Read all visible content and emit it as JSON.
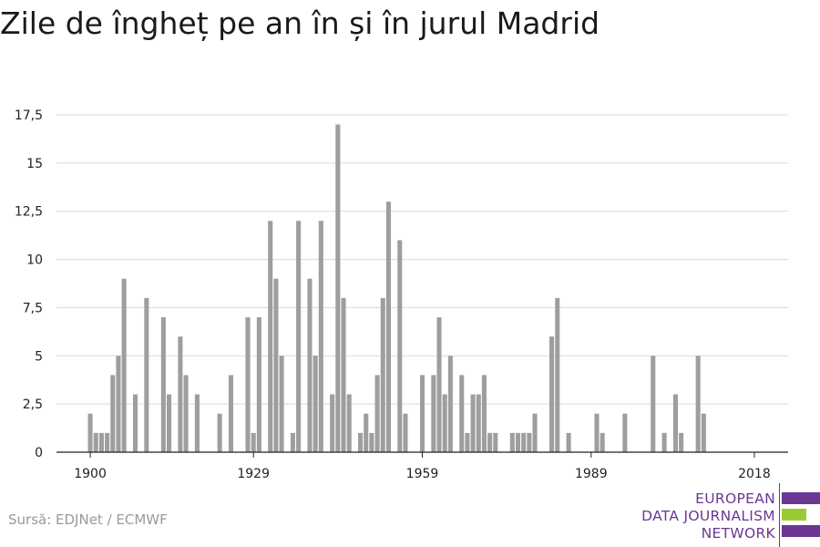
{
  "title": "Zile de îngheț pe an în și în jurul Madrid",
  "source": "Sursă: EDJNet / ECMWF",
  "logo": {
    "lines": [
      "EUROPEAN",
      "DATA JOURNALISM",
      "NETWORK"
    ],
    "colors": {
      "purple": "#6c3793",
      "green": "#99cc33"
    }
  },
  "colors": {
    "bar": "#9e9e9e",
    "grid": "#d9d9d9",
    "axis": "#222222"
  },
  "chart_data": {
    "type": "bar",
    "title": "Zile de îngheț pe an în și în jurul Madrid",
    "xlabel": "",
    "ylabel": "",
    "xlim": [
      1894,
      2024
    ],
    "ylim": [
      0,
      17.5
    ],
    "grid": true,
    "y_ticks": [
      0,
      2.5,
      5,
      7.5,
      10,
      12.5,
      15,
      17.5
    ],
    "y_tick_labels": [
      "0",
      "2,5",
      "5",
      "7,5",
      "10",
      "12,5",
      "15",
      "17,5"
    ],
    "x_ticks": [
      1900,
      1929,
      1959,
      1989,
      2018
    ],
    "x_tick_labels": [
      "1900",
      "1929",
      "1959",
      "1989",
      "2018"
    ],
    "x": [
      1900,
      1901,
      1902,
      1903,
      1904,
      1905,
      1906,
      1907,
      1908,
      1909,
      1910,
      1911,
      1912,
      1913,
      1914,
      1915,
      1916,
      1917,
      1918,
      1919,
      1920,
      1921,
      1922,
      1923,
      1924,
      1925,
      1926,
      1927,
      1928,
      1929,
      1930,
      1931,
      1932,
      1933,
      1934,
      1935,
      1936,
      1937,
      1938,
      1939,
      1940,
      1941,
      1942,
      1943,
      1944,
      1945,
      1946,
      1947,
      1948,
      1949,
      1950,
      1951,
      1952,
      1953,
      1954,
      1955,
      1956,
      1957,
      1958,
      1959,
      1960,
      1961,
      1962,
      1963,
      1964,
      1965,
      1966,
      1967,
      1968,
      1969,
      1970,
      1971,
      1972,
      1973,
      1974,
      1975,
      1976,
      1977,
      1978,
      1979,
      1980,
      1981,
      1982,
      1983,
      1984,
      1985,
      1986,
      1987,
      1988,
      1989,
      1990,
      1991,
      1992,
      1993,
      1994,
      1995,
      1996,
      1997,
      1998,
      1999,
      2000,
      2001,
      2002,
      2003,
      2004,
      2005,
      2006,
      2007,
      2008,
      2009,
      2010,
      2011,
      2012,
      2013,
      2014,
      2015,
      2016,
      2017,
      2018
    ],
    "values": [
      2,
      1,
      1,
      1,
      4,
      5,
      9,
      0,
      3,
      0,
      8,
      0,
      0,
      7,
      3,
      0,
      6,
      4,
      0,
      3,
      0,
      0,
      0,
      2,
      0,
      4,
      0,
      0,
      7,
      1,
      7,
      0,
      12,
      9,
      5,
      0,
      1,
      12,
      0,
      9,
      5,
      12,
      0,
      3,
      17,
      8,
      3,
      0,
      1,
      2,
      1,
      4,
      8,
      13,
      0,
      11,
      2,
      0,
      0,
      4,
      0,
      4,
      7,
      3,
      5,
      0,
      4,
      1,
      3,
      3,
      4,
      1,
      1,
      0,
      0,
      1,
      1,
      1,
      1,
      2,
      0,
      0,
      6,
      8,
      0,
      1,
      0,
      0,
      0,
      0,
      2,
      1,
      0,
      0,
      0,
      2,
      0,
      0,
      0,
      0,
      5,
      0,
      1,
      0,
      3,
      1,
      0,
      0,
      5,
      2,
      0,
      0,
      0,
      0,
      0,
      0,
      0,
      0,
      0
    ]
  }
}
